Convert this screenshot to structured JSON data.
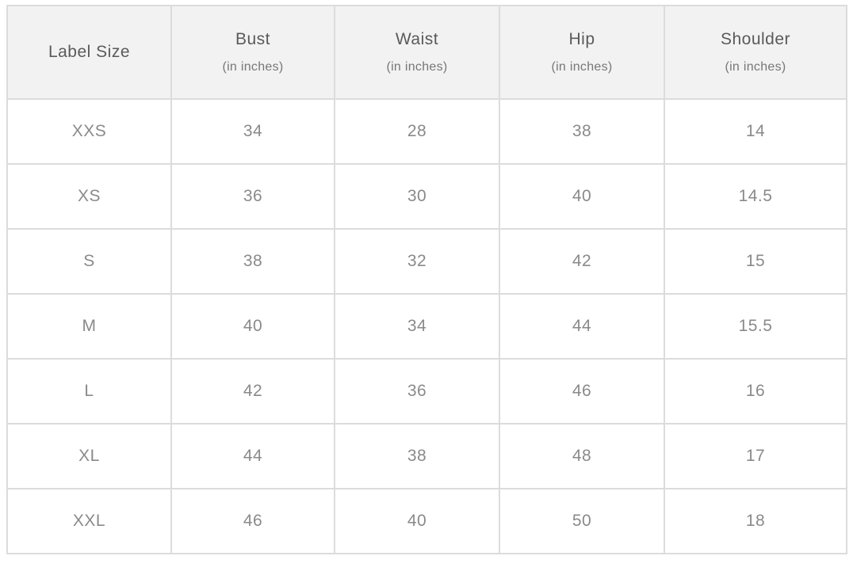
{
  "headers": [
    {
      "label": "Label Size",
      "unit": ""
    },
    {
      "label": "Bust",
      "unit": "(in inches)"
    },
    {
      "label": "Waist",
      "unit": "(in inches)"
    },
    {
      "label": "Hip",
      "unit": "(in inches)"
    },
    {
      "label": "Shoulder",
      "unit": "(in inches)"
    }
  ],
  "rows": [
    [
      "XXS",
      "34",
      "28",
      "38",
      "14"
    ],
    [
      "XS",
      "36",
      "30",
      "40",
      "14.5"
    ],
    [
      "S",
      "38",
      "32",
      "42",
      "15"
    ],
    [
      "M",
      "40",
      "34",
      "44",
      "15.5"
    ],
    [
      "L",
      "42",
      "36",
      "46",
      "16"
    ],
    [
      "XL",
      "44",
      "38",
      "48",
      "17"
    ],
    [
      "XXL",
      "46",
      "40",
      "50",
      "18"
    ]
  ],
  "colors": {
    "header_bg": "#f2f2f2",
    "border": "#dcdcdc",
    "header_text": "#5a5a5a",
    "cell_text": "#8a8a8a"
  }
}
